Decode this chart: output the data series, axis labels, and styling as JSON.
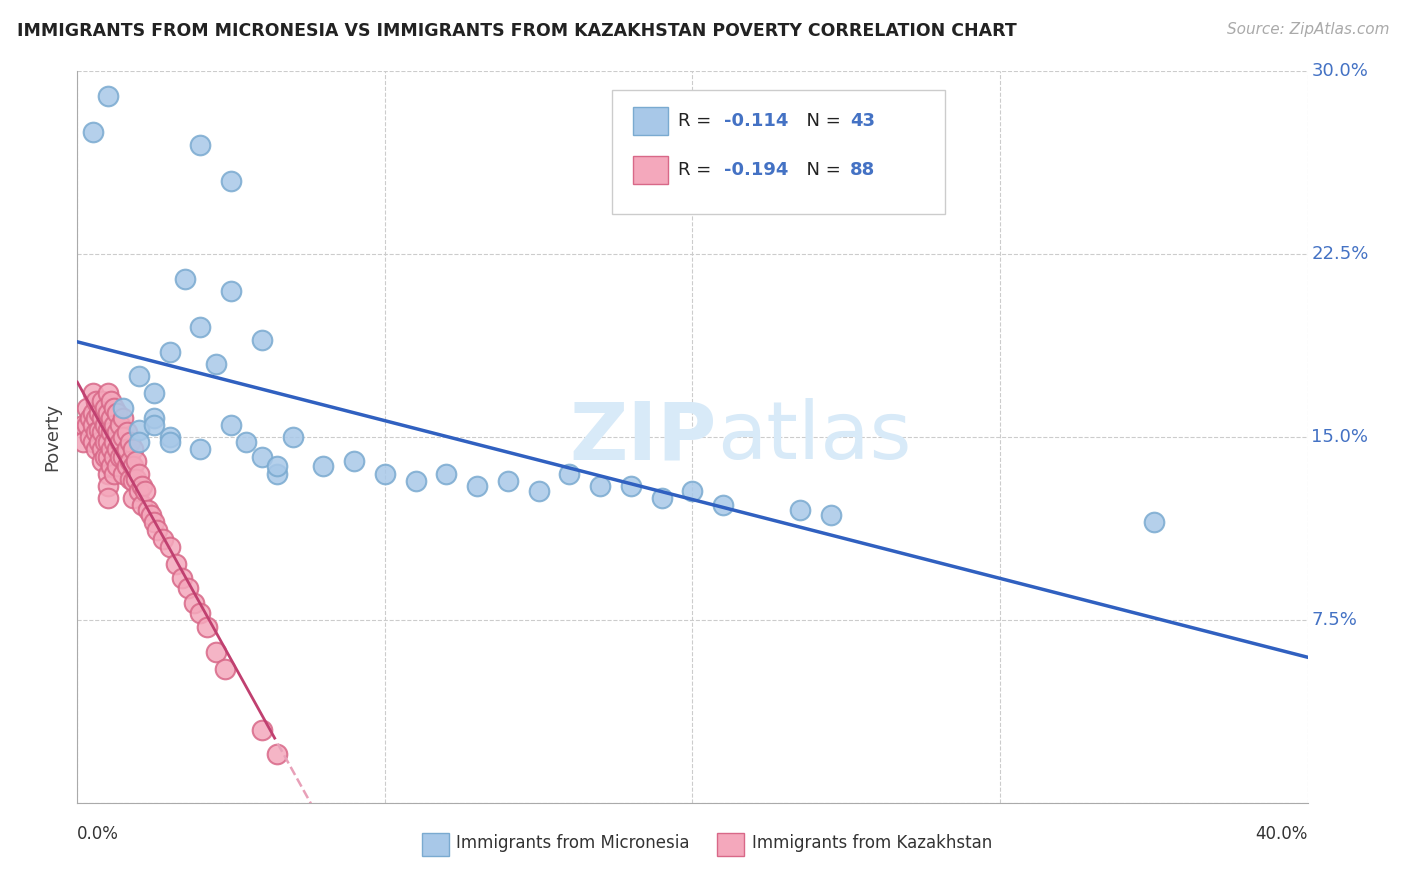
{
  "title": "IMMIGRANTS FROM MICRONESIA VS IMMIGRANTS FROM KAZAKHSTAN POVERTY CORRELATION CHART",
  "source": "Source: ZipAtlas.com",
  "ylabel": "Poverty",
  "xlim": [
    0.0,
    0.4
  ],
  "ylim": [
    0.0,
    0.3
  ],
  "yticks": [
    0.0,
    0.075,
    0.15,
    0.225,
    0.3
  ],
  "ytick_labels": [
    "",
    "7.5%",
    "15.0%",
    "22.5%",
    "30.0%"
  ],
  "xticks": [
    0.0,
    0.1,
    0.2,
    0.3,
    0.4
  ],
  "grid_color": "#cccccc",
  "background_color": "#ffffff",
  "micronesia_color": "#a8c8e8",
  "kazakhstan_color": "#f4a8bc",
  "micronesia_edge": "#7aaad0",
  "kazakhstan_edge": "#d86888",
  "trend_blue": "#3060c0",
  "trend_pink": "#c04070",
  "trend_pink_dashed": "#e8a0b8",
  "legend_text_color": "#4472c4",
  "watermark_color": "#d8eaf8",
  "R_micronesia": -0.114,
  "N_micronesia": 43,
  "R_kazakhstan": -0.194,
  "N_kazakhstan": 88,
  "micronesia_x": [
    0.01,
    0.005,
    0.04,
    0.05,
    0.035,
    0.05,
    0.04,
    0.06,
    0.03,
    0.045,
    0.02,
    0.025,
    0.015,
    0.025,
    0.02,
    0.02,
    0.025,
    0.03,
    0.03,
    0.04,
    0.05,
    0.055,
    0.06,
    0.07,
    0.065,
    0.065,
    0.08,
    0.09,
    0.1,
    0.11,
    0.12,
    0.13,
    0.14,
    0.15,
    0.16,
    0.17,
    0.18,
    0.19,
    0.2,
    0.21,
    0.235,
    0.245,
    0.35
  ],
  "micronesia_y": [
    0.29,
    0.275,
    0.27,
    0.255,
    0.215,
    0.21,
    0.195,
    0.19,
    0.185,
    0.18,
    0.175,
    0.168,
    0.162,
    0.158,
    0.153,
    0.148,
    0.155,
    0.15,
    0.148,
    0.145,
    0.155,
    0.148,
    0.142,
    0.15,
    0.135,
    0.138,
    0.138,
    0.14,
    0.135,
    0.132,
    0.135,
    0.13,
    0.132,
    0.128,
    0.135,
    0.13,
    0.13,
    0.125,
    0.128,
    0.122,
    0.12,
    0.118,
    0.115
  ],
  "kazakhstan_x": [
    0.002,
    0.002,
    0.003,
    0.003,
    0.004,
    0.004,
    0.005,
    0.005,
    0.005,
    0.005,
    0.006,
    0.006,
    0.006,
    0.006,
    0.007,
    0.007,
    0.007,
    0.008,
    0.008,
    0.008,
    0.008,
    0.008,
    0.009,
    0.009,
    0.009,
    0.009,
    0.01,
    0.01,
    0.01,
    0.01,
    0.01,
    0.01,
    0.01,
    0.01,
    0.011,
    0.011,
    0.011,
    0.011,
    0.011,
    0.012,
    0.012,
    0.012,
    0.012,
    0.012,
    0.013,
    0.013,
    0.013,
    0.013,
    0.014,
    0.014,
    0.014,
    0.015,
    0.015,
    0.015,
    0.015,
    0.016,
    0.016,
    0.016,
    0.017,
    0.017,
    0.017,
    0.018,
    0.018,
    0.018,
    0.018,
    0.019,
    0.019,
    0.02,
    0.02,
    0.021,
    0.021,
    0.022,
    0.023,
    0.024,
    0.025,
    0.026,
    0.028,
    0.03,
    0.032,
    0.034,
    0.036,
    0.038,
    0.04,
    0.042,
    0.045,
    0.048,
    0.06,
    0.065
  ],
  "kazakhstan_y": [
    0.155,
    0.148,
    0.162,
    0.155,
    0.158,
    0.15,
    0.168,
    0.16,
    0.155,
    0.148,
    0.165,
    0.158,
    0.152,
    0.145,
    0.16,
    0.153,
    0.148,
    0.165,
    0.158,
    0.152,
    0.145,
    0.14,
    0.162,
    0.155,
    0.148,
    0.142,
    0.168,
    0.16,
    0.153,
    0.148,
    0.142,
    0.135,
    0.13,
    0.125,
    0.165,
    0.158,
    0.152,
    0.145,
    0.138,
    0.162,
    0.155,
    0.148,
    0.142,
    0.135,
    0.16,
    0.152,
    0.145,
    0.138,
    0.155,
    0.148,
    0.142,
    0.158,
    0.15,
    0.142,
    0.135,
    0.152,
    0.145,
    0.138,
    0.148,
    0.14,
    0.133,
    0.145,
    0.138,
    0.132,
    0.125,
    0.14,
    0.133,
    0.135,
    0.128,
    0.13,
    0.122,
    0.128,
    0.12,
    0.118,
    0.115,
    0.112,
    0.108,
    0.105,
    0.098,
    0.092,
    0.088,
    0.082,
    0.078,
    0.072,
    0.062,
    0.055,
    0.03,
    0.02
  ]
}
